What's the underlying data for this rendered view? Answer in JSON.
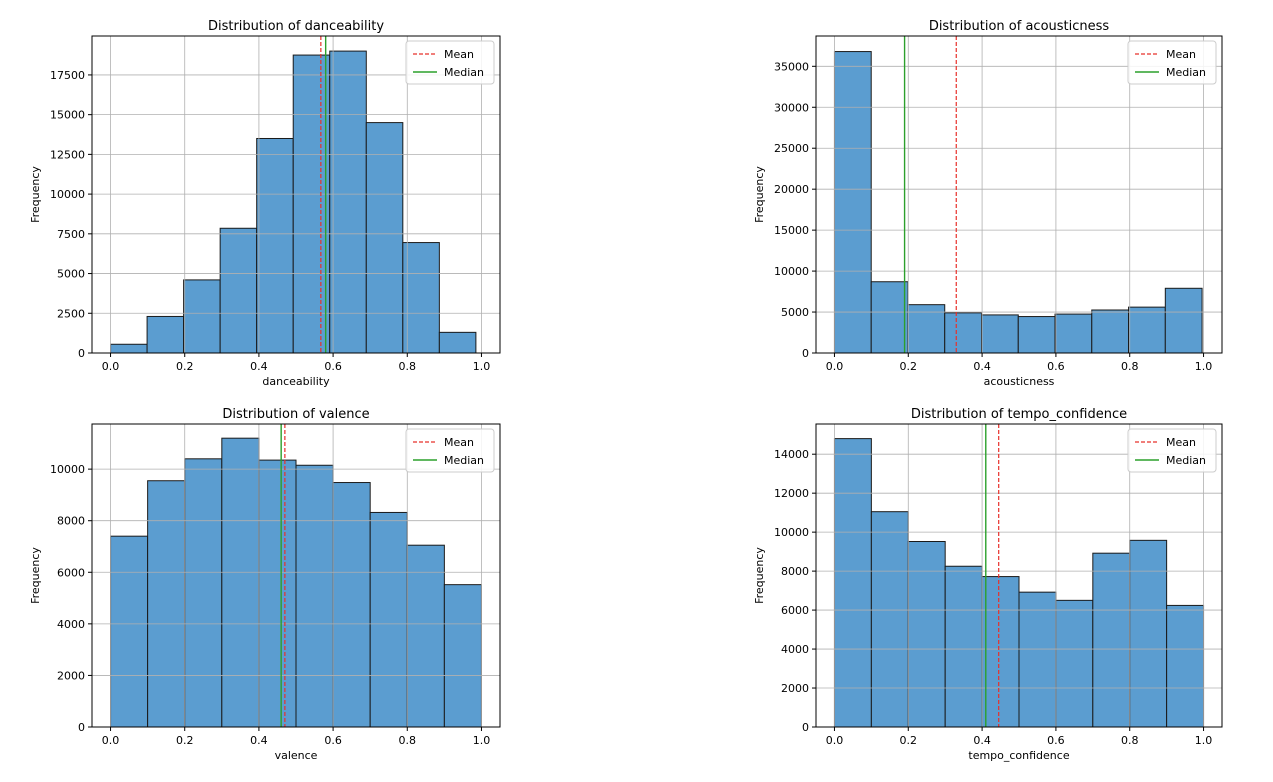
{
  "legend_labels": {
    "mean": "Mean",
    "median": "Median"
  },
  "colors": {
    "bar_fill": "#5b9dd0",
    "bar_edge": "#1a1a1a",
    "mean_line": "#e8302a",
    "median_line": "#2ca02c",
    "grid": "#b0b0b0"
  },
  "chart_data": [
    {
      "type": "bar",
      "title": "Distribution of danceability",
      "xlabel": "danceability",
      "ylabel": "Frequency",
      "xlim": [
        -0.05,
        1.05
      ],
      "ylim": [
        0,
        19950
      ],
      "xticks": [
        0.0,
        0.2,
        0.4,
        0.6,
        0.8,
        1.0
      ],
      "xtick_labels": [
        "0.0",
        "0.2",
        "0.4",
        "0.6",
        "0.8",
        "1.0"
      ],
      "yticks": [
        0,
        2500,
        5000,
        7500,
        10000,
        12500,
        15000,
        17500
      ],
      "ytick_labels": [
        "0",
        "2500",
        "5000",
        "7500",
        "10000",
        "12500",
        "15000",
        "17500"
      ],
      "bin_edges": [
        0.0,
        0.0985,
        0.197,
        0.2955,
        0.394,
        0.4925,
        0.591,
        0.6895,
        0.788,
        0.8865,
        0.985
      ],
      "counts": [
        550,
        2300,
        4600,
        7850,
        13500,
        18750,
        19000,
        14500,
        6950,
        1300
      ],
      "mean": 0.567,
      "median": 0.58,
      "grid": true,
      "legend_position": "top-right"
    },
    {
      "type": "bar",
      "title": "Distribution of acousticness",
      "xlabel": "acousticness",
      "ylabel": "Frequency",
      "xlim": [
        -0.05,
        1.05
      ],
      "ylim": [
        0,
        38700
      ],
      "xticks": [
        0.0,
        0.2,
        0.4,
        0.6,
        0.8,
        1.0
      ],
      "xtick_labels": [
        "0.0",
        "0.2",
        "0.4",
        "0.6",
        "0.8",
        "1.0"
      ],
      "yticks": [
        0,
        5000,
        10000,
        15000,
        20000,
        25000,
        30000,
        35000
      ],
      "ytick_labels": [
        "0",
        "5000",
        "10000",
        "15000",
        "20000",
        "25000",
        "30000",
        "35000"
      ],
      "bin_edges": [
        0.0,
        0.0996,
        0.1992,
        0.2988,
        0.3984,
        0.498,
        0.5976,
        0.6972,
        0.7968,
        0.8964,
        0.996
      ],
      "counts": [
        36800,
        8700,
        5900,
        4900,
        4650,
        4450,
        4750,
        5250,
        5600,
        7900
      ],
      "mean": 0.33,
      "median": 0.19,
      "grid": true,
      "legend_position": "top-right"
    },
    {
      "type": "bar",
      "title": "Distribution of valence",
      "xlabel": "valence",
      "ylabel": "Frequency",
      "xlim": [
        -0.05,
        1.05
      ],
      "ylim": [
        0,
        11750
      ],
      "xticks": [
        0.0,
        0.2,
        0.4,
        0.6,
        0.8,
        1.0
      ],
      "xtick_labels": [
        "0.0",
        "0.2",
        "0.4",
        "0.6",
        "0.8",
        "1.0"
      ],
      "yticks": [
        0,
        2000,
        4000,
        6000,
        8000,
        10000
      ],
      "ytick_labels": [
        "0",
        "2000",
        "4000",
        "6000",
        "8000",
        "10000"
      ],
      "bin_edges": [
        0.0,
        0.1,
        0.2,
        0.3,
        0.4,
        0.5,
        0.6,
        0.7,
        0.8,
        0.9,
        1.0
      ],
      "counts": [
        7400,
        9550,
        10400,
        11200,
        10350,
        10150,
        9480,
        8320,
        7050,
        5520
      ],
      "mean": 0.47,
      "median": 0.46,
      "grid": true,
      "legend_position": "top-right"
    },
    {
      "type": "bar",
      "title": "Distribution of tempo_confidence",
      "xlabel": "tempo_confidence",
      "ylabel": "Frequency",
      "xlim": [
        -0.05,
        1.05
      ],
      "ylim": [
        0,
        15550
      ],
      "xticks": [
        0.0,
        0.2,
        0.4,
        0.6,
        0.8,
        1.0
      ],
      "xtick_labels": [
        "0.0",
        "0.2",
        "0.4",
        "0.6",
        "0.8",
        "1.0"
      ],
      "yticks": [
        0,
        2000,
        4000,
        6000,
        8000,
        10000,
        12000,
        14000
      ],
      "ytick_labels": [
        "0",
        "2000",
        "4000",
        "6000",
        "8000",
        "10000",
        "12000",
        "14000"
      ],
      "bin_edges": [
        0.0,
        0.1,
        0.2,
        0.3,
        0.4,
        0.5,
        0.6,
        0.7,
        0.8,
        0.9,
        1.0
      ],
      "counts": [
        14800,
        11050,
        9520,
        8250,
        7720,
        6920,
        6500,
        8920,
        9580,
        6240
      ],
      "mean": 0.445,
      "median": 0.41,
      "grid": true,
      "legend_position": "top-right"
    }
  ]
}
